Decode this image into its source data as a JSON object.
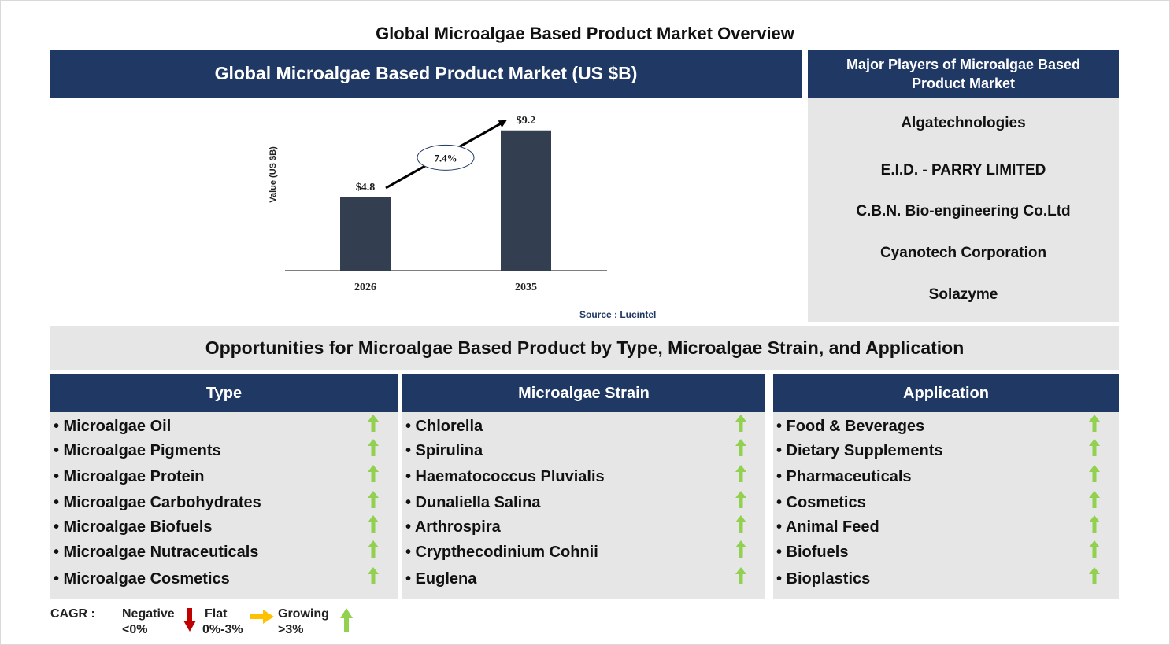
{
  "title": "Global Microalgae Based Product Market Overview",
  "chart_panel": {
    "header": "Global Microalgae Based Product Market (US $B)",
    "source": "Source : Lucintel"
  },
  "chart_data": {
    "type": "bar",
    "categories": [
      "2026",
      "2035"
    ],
    "values": [
      4.8,
      9.2
    ],
    "value_labels": [
      "$4.8",
      "$9.2"
    ],
    "ylabel": "Value (US $B)",
    "xlabel": "",
    "cagr_label": "7.4%",
    "bar_color": "#333f50",
    "grid": false
  },
  "players": {
    "header": "Major Players of Microalgae Based Product Market",
    "items": [
      "Algatechnologies",
      "E.I.D. - PARRY LIMITED",
      "C.B.N. Bio-engineering Co.Ltd",
      "Cyanotech Corporation",
      "Solazyme"
    ]
  },
  "opportunities": {
    "banner": "Opportunities for Microalgae Based Product by Type, Microalgae Strain, and Application",
    "columns": [
      {
        "header": "Type",
        "items": [
          "• Microalgae Oil",
          "• Microalgae Pigments",
          "• Microalgae Protein",
          "• Microalgae Carbohydrates",
          "• Microalgae Biofuels",
          "• Microalgae Nutraceuticals",
          "• Microalgae Cosmetics"
        ],
        "trend": "growing"
      },
      {
        "header": "Microalgae Strain",
        "items": [
          "• Chlorella",
          "• Spirulina",
          "• Haematococcus Pluvialis",
          "• Dunaliella Salina",
          "• Arthrospira",
          "• Crypthecodinium Cohnii",
          "• Euglena"
        ],
        "trend": "growing"
      },
      {
        "header": "Application",
        "items": [
          "• Food & Beverages",
          "• Dietary Supplements",
          "• Pharmaceuticals",
          "• Cosmetics",
          "• Animal Feed",
          "• Biofuels",
          "• Bioplastics"
        ],
        "trend": "growing"
      }
    ]
  },
  "legend": {
    "cagr": "CAGR :",
    "negative_label": "Negative",
    "negative_range": "<0%",
    "flat_label": "Flat",
    "flat_range": "0%-3%",
    "growing_label": "Growing",
    "growing_range": ">3%"
  },
  "colors": {
    "navy": "#1f3864",
    "grey_panel": "#e7e6e6",
    "growing": "#92d050",
    "flat": "#ffc000",
    "negative": "#c00000"
  }
}
